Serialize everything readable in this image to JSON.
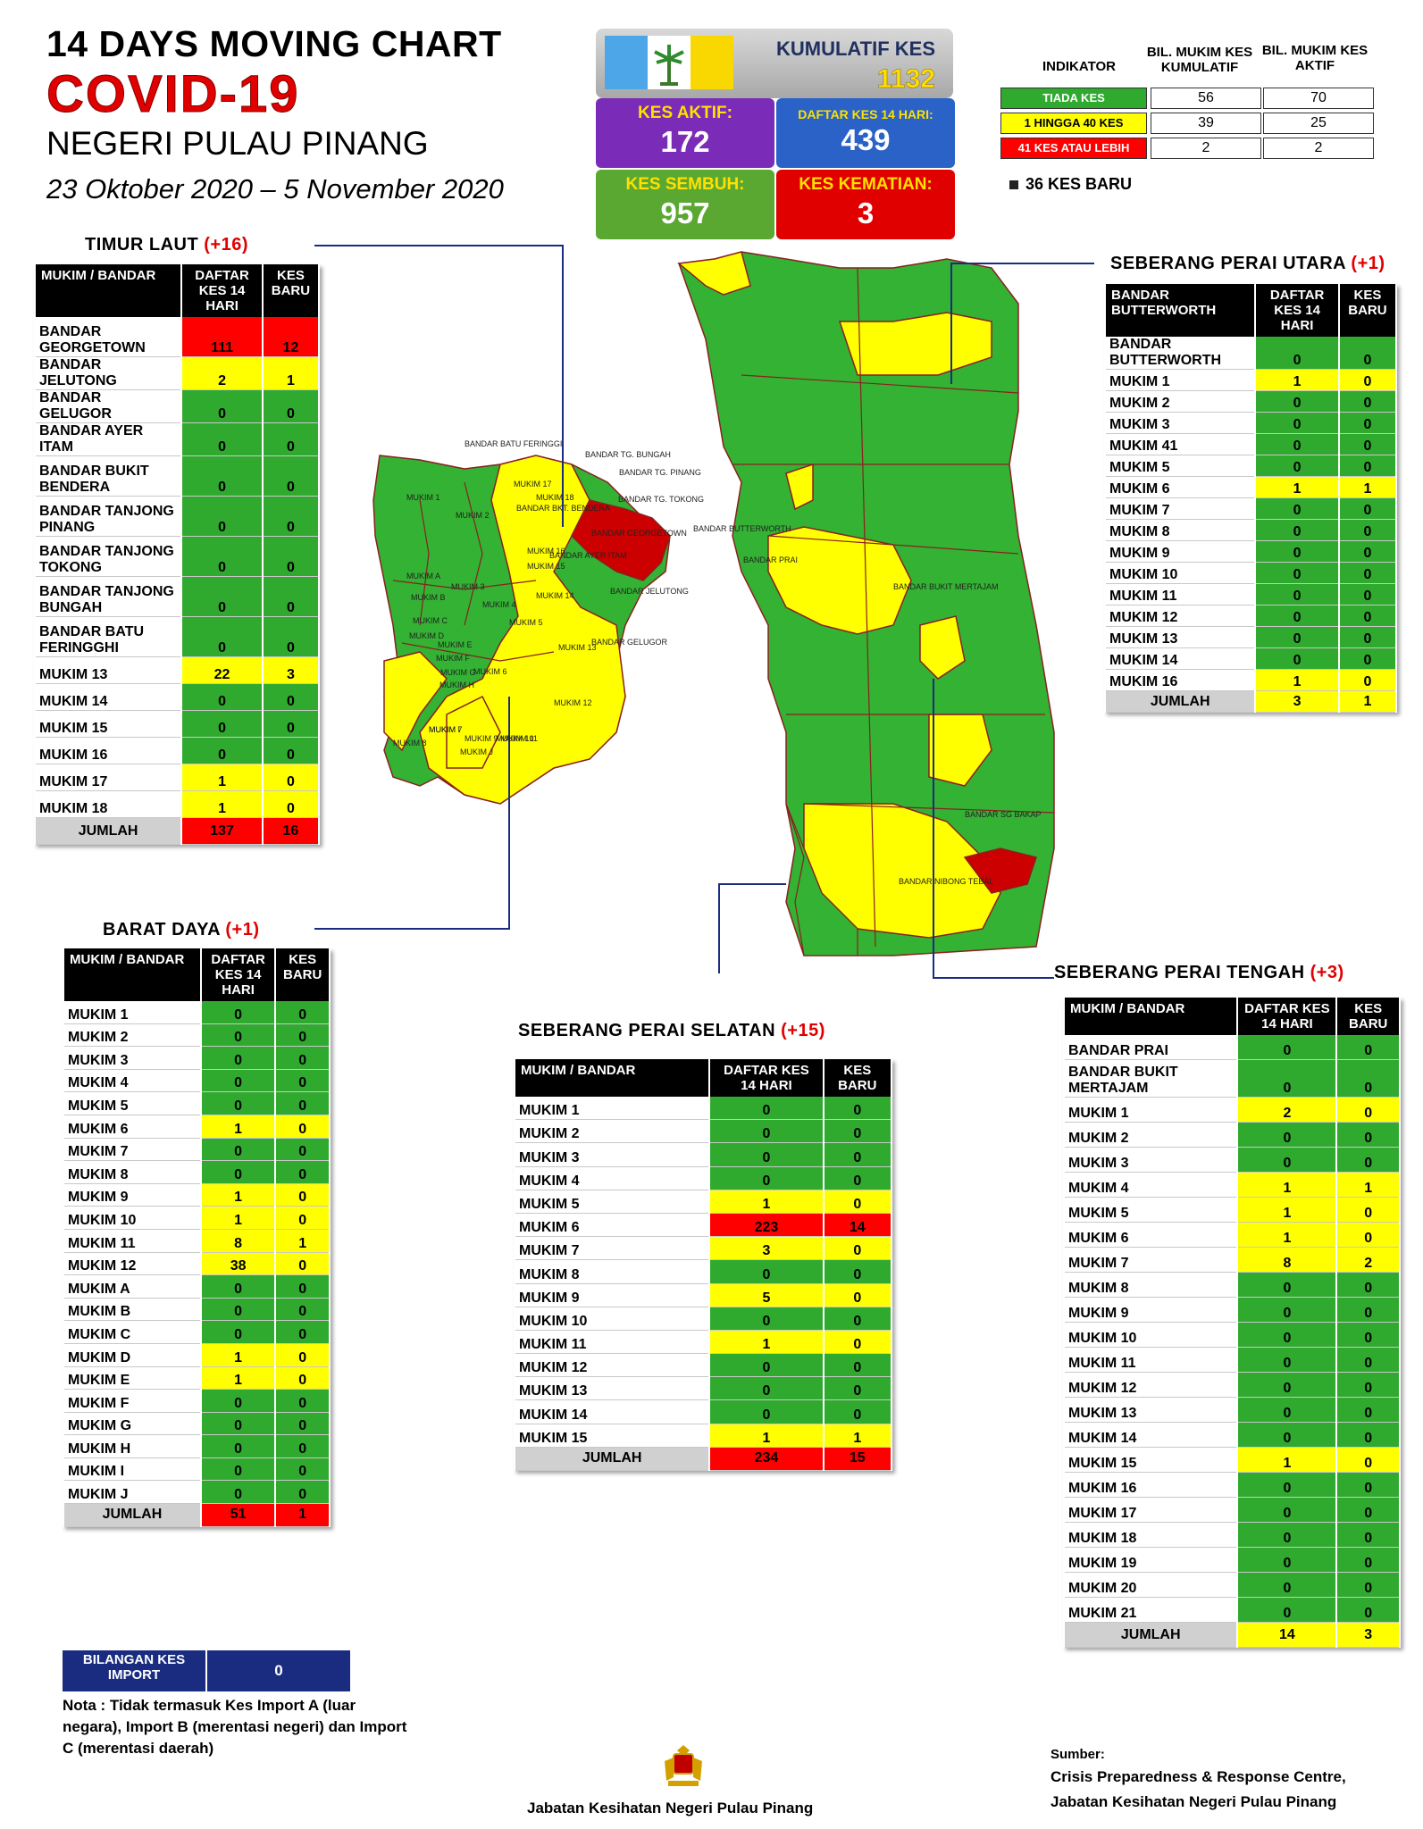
{
  "header": {
    "title_line1": "14  DAYS MOVING CHART",
    "title_line2": "COVID-19",
    "title_line3": "NEGERI PULAU PINANG",
    "date_range": "23 Oktober 2020 – 5 November 2020"
  },
  "stats": {
    "kumulatif_label": "KUMULATIF KES",
    "kumulatif_value": "1132",
    "aktif_label": "KES AKTIF:",
    "aktif_value": "172",
    "daftar14_label": "DAFTAR KES 14 HARI:",
    "daftar14_value": "439",
    "sembuh_label": "KES SEMBUH:",
    "sembuh_value": "957",
    "kematian_label": "KES KEMATIAN:",
    "kematian_value": "3"
  },
  "indicator": {
    "h1": "INDIKATOR",
    "h2": "BIL. MUKIM KES KUMULATIF",
    "h3": "BIL. MUKIM KES AKTIF",
    "rows": [
      {
        "label": "TIADA KES",
        "kumulatif": "56",
        "aktif": "70",
        "color": "#2faa2f"
      },
      {
        "label": "1 HINGGA 40 KES",
        "kumulatif": "39",
        "aktif": "25",
        "color": "#ffff00"
      },
      {
        "label": "41 KES ATAU LEBIH",
        "kumulatif": "2",
        "aktif": "2",
        "color": "#ff0000"
      }
    ],
    "new_cases": "36 KES BARU"
  },
  "colors": {
    "green": "#2faa2f",
    "yellow": "#ffff00",
    "red": "#ff0000",
    "dark_red": "#c00000"
  },
  "districts": {
    "timur_laut": {
      "title": "TIMUR LAUT",
      "delta": "(+16)",
      "headers": [
        "MUKIM / BANDAR",
        "DAFTAR KES 14 HARI",
        "KES BARU"
      ],
      "rows": [
        [
          "BANDAR GEORGETOWN",
          "111",
          "12"
        ],
        [
          "BANDAR JELUTONG",
          "2",
          "1"
        ],
        [
          "BANDAR GELUGOR",
          "0",
          "0"
        ],
        [
          "BANDAR AYER ITAM",
          "0",
          "0"
        ],
        [
          "BANDAR BUKIT BENDERA",
          "0",
          "0"
        ],
        [
          "BANDAR TANJONG PINANG",
          "0",
          "0"
        ],
        [
          "BANDAR TANJONG TOKONG",
          "0",
          "0"
        ],
        [
          "BANDAR TANJONG BUNGAH",
          "0",
          "0"
        ],
        [
          "BANDAR BATU FERINGGHI",
          "0",
          "0"
        ],
        [
          "MUKIM 13",
          "22",
          "3"
        ],
        [
          "MUKIM 14",
          "0",
          "0"
        ],
        [
          "MUKIM 15",
          "0",
          "0"
        ],
        [
          "MUKIM 16",
          "0",
          "0"
        ],
        [
          "MUKIM 17",
          "1",
          "0"
        ],
        [
          "MUKIM 18",
          "1",
          "0"
        ]
      ],
      "total": [
        "JUMLAH",
        "137",
        "16"
      ]
    },
    "barat_daya": {
      "title": "BARAT DAYA",
      "delta": "(+1)",
      "headers": [
        "MUKIM / BANDAR",
        "DAFTAR KES 14 HARI",
        "KES BARU"
      ],
      "rows": [
        [
          "MUKIM 1",
          "0",
          "0"
        ],
        [
          "MUKIM 2",
          "0",
          "0"
        ],
        [
          "MUKIM 3",
          "0",
          "0"
        ],
        [
          "MUKIM 4",
          "0",
          "0"
        ],
        [
          "MUKIM 5",
          "0",
          "0"
        ],
        [
          "MUKIM 6",
          "1",
          "0"
        ],
        [
          "MUKIM 7",
          "0",
          "0"
        ],
        [
          "MUKIM 8",
          "0",
          "0"
        ],
        [
          "MUKIM 9",
          "1",
          "0"
        ],
        [
          "MUKIM 10",
          "1",
          "0"
        ],
        [
          "MUKIM 11",
          "8",
          "1"
        ],
        [
          "MUKIM 12",
          "38",
          "0"
        ],
        [
          "MUKIM A",
          "0",
          "0"
        ],
        [
          "MUKIM B",
          "0",
          "0"
        ],
        [
          "MUKIM C",
          "0",
          "0"
        ],
        [
          "MUKIM D",
          "1",
          "0"
        ],
        [
          "MUKIM E",
          "1",
          "0"
        ],
        [
          "MUKIM F",
          "0",
          "0"
        ],
        [
          "MUKIM G",
          "0",
          "0"
        ],
        [
          "MUKIM H",
          "0",
          "0"
        ],
        [
          "MUKIM I",
          "0",
          "0"
        ],
        [
          "MUKIM J",
          "0",
          "0"
        ]
      ],
      "total": [
        "JUMLAH",
        "51",
        "1"
      ]
    },
    "spu": {
      "title": "SEBERANG PERAI UTARA",
      "delta": "(+1)",
      "headers": [
        "BANDAR BUTTERWORTH",
        "DAFTAR KES 14 HARI",
        "KES BARU"
      ],
      "rows": [
        [
          "BANDAR BUTTERWORTH",
          "0",
          "0"
        ],
        [
          "MUKIM 1",
          "1",
          "0"
        ],
        [
          "MUKIM 2",
          "0",
          "0"
        ],
        [
          "MUKIM 3",
          "0",
          "0"
        ],
        [
          "MUKIM 41",
          "0",
          "0"
        ],
        [
          "MUKIM 5",
          "0",
          "0"
        ],
        [
          "MUKIM 6",
          "1",
          "1"
        ],
        [
          "MUKIM 7",
          "0",
          "0"
        ],
        [
          "MUKIM 8",
          "0",
          "0"
        ],
        [
          "MUKIM 9",
          "0",
          "0"
        ],
        [
          "MUKIM 10",
          "0",
          "0"
        ],
        [
          "MUKIM 11",
          "0",
          "0"
        ],
        [
          "MUKIM 12",
          "0",
          "0"
        ],
        [
          "MUKIM 13",
          "0",
          "0"
        ],
        [
          "MUKIM 14",
          "0",
          "0"
        ],
        [
          "MUKIM 16",
          "1",
          "0"
        ]
      ],
      "total": [
        "JUMLAH",
        "3",
        "1"
      ]
    },
    "sps": {
      "title": "SEBERANG PERAI SELATAN",
      "delta": "(+15)",
      "headers": [
        "MUKIM / BANDAR",
        "DAFTAR KES 14 HARI",
        "KES BARU"
      ],
      "rows": [
        [
          "MUKIM 1",
          "0",
          "0"
        ],
        [
          "MUKIM 2",
          "0",
          "0"
        ],
        [
          "MUKIM 3",
          "0",
          "0"
        ],
        [
          "MUKIM 4",
          "0",
          "0"
        ],
        [
          "MUKIM 5",
          "1",
          "0"
        ],
        [
          "MUKIM 6",
          "223",
          "14"
        ],
        [
          "MUKIM 7",
          "3",
          "0"
        ],
        [
          "MUKIM 8",
          "0",
          "0"
        ],
        [
          "MUKIM 9",
          "5",
          "0"
        ],
        [
          "MUKIM 10",
          "0",
          "0"
        ],
        [
          "MUKIM 11",
          "1",
          "0"
        ],
        [
          "MUKIM 12",
          "0",
          "0"
        ],
        [
          "MUKIM 13",
          "0",
          "0"
        ],
        [
          "MUKIM 14",
          "0",
          "0"
        ],
        [
          "MUKIM 15",
          "1",
          "1"
        ]
      ],
      "total": [
        "JUMLAH",
        "234",
        "15"
      ]
    },
    "spt": {
      "title": "SEBERANG PERAI TENGAH",
      "delta": "(+3)",
      "headers": [
        "MUKIM / BANDAR",
        "DAFTAR KES 14 HARI",
        "KES BARU"
      ],
      "rows": [
        [
          "BANDAR PRAI",
          "0",
          "0"
        ],
        [
          "BANDAR BUKIT MERTAJAM",
          "0",
          "0"
        ],
        [
          "MUKIM 1",
          "2",
          "0"
        ],
        [
          "MUKIM 2",
          "0",
          "0"
        ],
        [
          "MUKIM 3",
          "0",
          "0"
        ],
        [
          "MUKIM 4",
          "1",
          "1"
        ],
        [
          "MUKIM 5",
          "1",
          "0"
        ],
        [
          "MUKIM 6",
          "1",
          "0"
        ],
        [
          "MUKIM 7",
          "8",
          "2"
        ],
        [
          "MUKIM 8",
          "0",
          "0"
        ],
        [
          "MUKIM 9",
          "0",
          "0"
        ],
        [
          "MUKIM 10",
          "0",
          "0"
        ],
        [
          "MUKIM 11",
          "0",
          "0"
        ],
        [
          "MUKIM 12",
          "0",
          "0"
        ],
        [
          "MUKIM 13",
          "0",
          "0"
        ],
        [
          "MUKIM 14",
          "0",
          "0"
        ],
        [
          "MUKIM 15",
          "1",
          "0"
        ],
        [
          "MUKIM 16",
          "0",
          "0"
        ],
        [
          "MUKIM 17",
          "0",
          "0"
        ],
        [
          "MUKIM 18",
          "0",
          "0"
        ],
        [
          "MUKIM 19",
          "0",
          "0"
        ],
        [
          "MUKIM 20",
          "0",
          "0"
        ],
        [
          "MUKIM 21",
          "0",
          "0"
        ]
      ],
      "total": [
        "JUMLAH",
        "14",
        "3"
      ]
    }
  },
  "map_labels": {
    "island": [
      "BANDAR BATU FERINGGI",
      "BANDAR TG. BUNGAH",
      "BANDAR TG. PINANG",
      "BANDAR TG. TOKONG",
      "BANDAR BKT. BENDERA",
      "BANDAR GEORGETOWN",
      "BANDAR AYER ITAM",
      "BANDAR JELUTONG",
      "BANDAR GELUGOR",
      "MUKIM 1",
      "MUKIM 2",
      "MUKIM 3",
      "MUKIM 4",
      "MUKIM 5",
      "MUKIM 6",
      "MUKIM 7",
      "MUKIM 8",
      "MUKIM 9",
      "MUKIM 10",
      "MUKIM 11",
      "MUKIM 12",
      "MUKIM 13",
      "MUKIM 14",
      "MUKIM 15",
      "MUKIM 16",
      "MUKIM 17",
      "MUKIM 18",
      "MUKIM A",
      "MUKIM B",
      "MUKIM C",
      "MUKIM D",
      "MUKIM E",
      "MUKIM F",
      "MUKIM G",
      "MUKIM H",
      "MUKIM I",
      "MUKIM J"
    ],
    "mainland": [
      "BANDAR BUTTERWORTH",
      "BANDAR PRAI",
      "BANDAR BUKIT MERTAJAM",
      "BANDAR SG BAKAP",
      "BANDAR NIBONG TEBAL"
    ]
  },
  "import_box": {
    "label": "BILANGAN KES IMPORT",
    "value": "0"
  },
  "nota": "Nota : Tidak termasuk Kes Import A (luar negara), Import B (merentasi negeri) dan Import C (merentasi daerah)",
  "footer": "Jabatan Kesihatan Negeri Pulau Pinang",
  "source": {
    "label": "Sumber:",
    "line1": "Crisis Preparedness & Response Centre,",
    "line2": "Jabatan Kesihatan Negeri Pulau Pinang"
  }
}
